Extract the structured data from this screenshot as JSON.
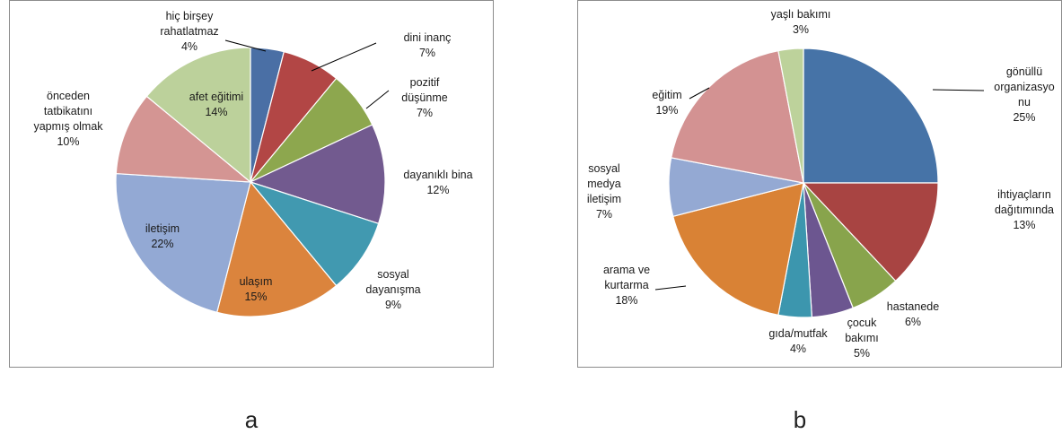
{
  "chart_data": [
    {
      "type": "pie",
      "caption": "a",
      "slices": [
        {
          "label": "hiç birşey rahatlatmaz",
          "value": 4,
          "color": "#4a6fa5"
        },
        {
          "label": "dini inanç",
          "value": 7,
          "color": "#b24645"
        },
        {
          "label": "pozitif düşünme",
          "value": 7,
          "color": "#8da74e"
        },
        {
          "label": "dayanıklı bina",
          "value": 12,
          "color": "#725a8f"
        },
        {
          "label": "sosyal dayanışma",
          "value": 9,
          "color": "#4199b0"
        },
        {
          "label": "ulaşım",
          "value": 15,
          "color": "#db843d"
        },
        {
          "label": "iletişim",
          "value": 22,
          "color": "#93a9d4"
        },
        {
          "label": "önceden tatbikatını yapmış olmak",
          "value": 10,
          "color": "#d49593"
        },
        {
          "label": "afet eğitimi",
          "value": 14,
          "color": "#bcd19b"
        }
      ]
    },
    {
      "type": "pie",
      "caption": "b",
      "slices": [
        {
          "label": "gönüllü organizasyonu",
          "value": 25,
          "color": "#4673a7"
        },
        {
          "label": "ihtiyaçların dağıtımında",
          "value": 13,
          "color": "#a84442"
        },
        {
          "label": "hastanede",
          "value": 6,
          "color": "#88a44c"
        },
        {
          "label": "çocuk bakımı",
          "value": 5,
          "color": "#6c5690"
        },
        {
          "label": "gıda/mutfak",
          "value": 4,
          "color": "#3c96ae"
        },
        {
          "label": "arama ve kurtarma",
          "value": 18,
          "color": "#d98235"
        },
        {
          "label": "sosyal medya iletişim",
          "value": 7,
          "color": "#94a9d3"
        },
        {
          "label": "eğitim",
          "value": 19,
          "color": "#d39292"
        },
        {
          "label": "yaşlı bakımı",
          "value": 3,
          "color": "#bdd29b"
        }
      ]
    }
  ],
  "label_lines": {
    "a": [
      [
        "hiç birşey",
        "rahatlatmaz",
        "4%"
      ],
      [
        "dini inanç",
        "7%"
      ],
      [
        "pozitif",
        "düşünme",
        "7%"
      ],
      [
        "dayanıklı bina",
        "12%"
      ],
      [
        "sosyal",
        "dayanışma",
        "9%"
      ],
      [
        "ulaşım",
        "15%"
      ],
      [
        "iletişim",
        "22%"
      ],
      [
        "önceden",
        "tatbikatını",
        "yapmış olmak",
        "10%"
      ],
      [
        "afet eğitimi",
        "14%"
      ]
    ],
    "b": [
      [
        "gönüllü",
        "organizasyo",
        "nu",
        "25%"
      ],
      [
        "ihtiyaçların",
        "dağıtımında",
        "13%"
      ],
      [
        "hastanede",
        "6%"
      ],
      [
        "çocuk",
        "bakımı",
        "5%"
      ],
      [
        "gıda/mutfak",
        "4%"
      ],
      [
        "arama ve",
        "kurtarma",
        "18%"
      ],
      [
        "sosyal",
        "medya",
        "iletişim",
        "7%"
      ],
      [
        "eğitim",
        "19%"
      ],
      [
        "yaşlı bakımı",
        "3%"
      ]
    ]
  }
}
